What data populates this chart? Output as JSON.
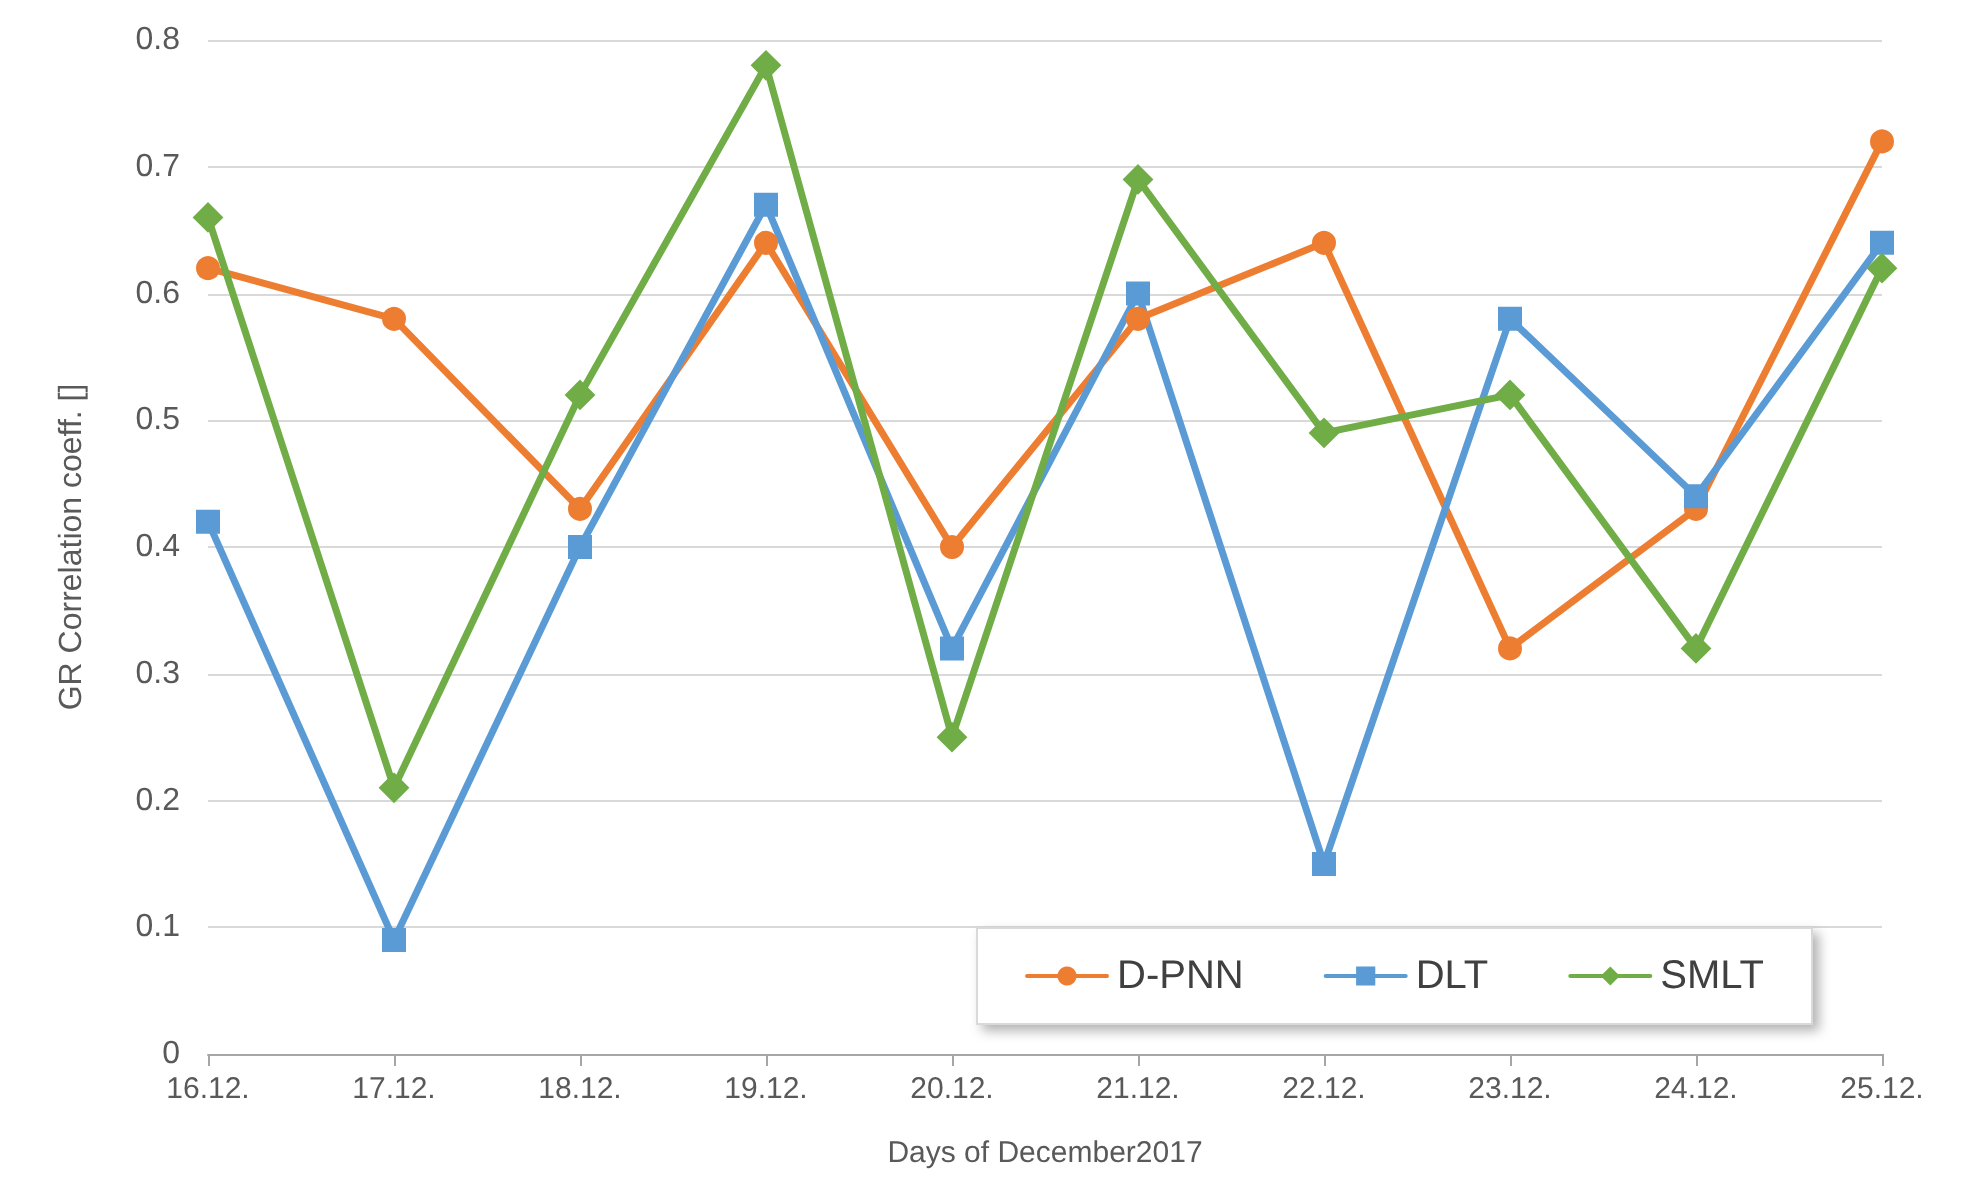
{
  "chart_data": {
    "type": "line",
    "xlabel": "Days of December2017",
    "ylabel": "GR Correlation coeff. []",
    "categories": [
      "16.12.",
      "17.12.",
      "18.12.",
      "19.12.",
      "20.12.",
      "21.12.",
      "22.12.",
      "23.12.",
      "24.12.",
      "25.12."
    ],
    "series": [
      {
        "name": "D-PNN",
        "color": "#ed7d31",
        "marker": "circle",
        "values": [
          0.62,
          0.58,
          0.43,
          0.64,
          0.4,
          0.58,
          0.64,
          0.32,
          0.43,
          0.72
        ]
      },
      {
        "name": "DLT",
        "color": "#5b9bd5",
        "marker": "square",
        "values": [
          0.42,
          0.09,
          0.4,
          0.67,
          0.32,
          0.6,
          0.15,
          0.58,
          0.44,
          0.64
        ]
      },
      {
        "name": "SMLT",
        "color": "#70ad47",
        "marker": "diamond",
        "values": [
          0.66,
          0.21,
          0.52,
          0.78,
          0.25,
          0.69,
          0.49,
          0.52,
          0.32,
          0.62
        ]
      }
    ],
    "ylim": [
      0,
      0.8
    ],
    "yticks": [
      0,
      0.1,
      0.2,
      0.3,
      0.4,
      0.5,
      0.6,
      0.7,
      0.8
    ],
    "grid": "y",
    "legend": "bottom right",
    "line_style": "solid"
  }
}
